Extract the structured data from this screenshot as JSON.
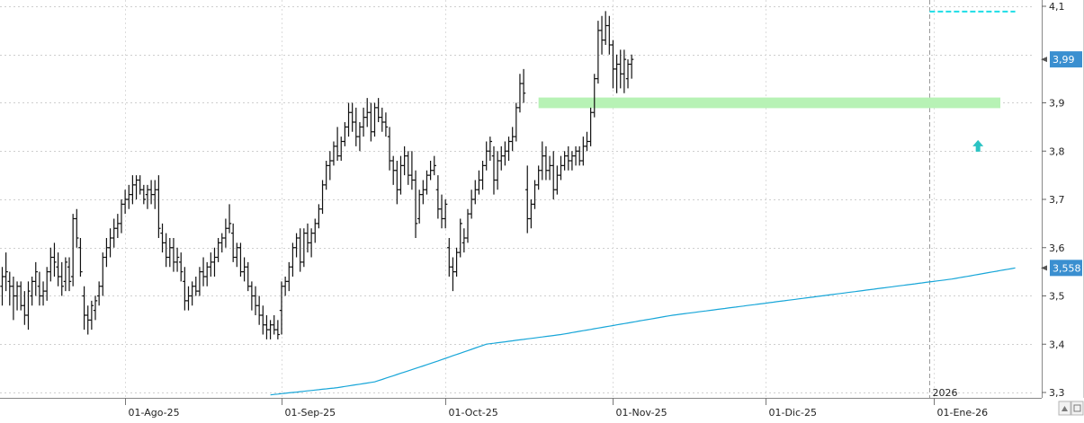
{
  "chart_data": {
    "type": "bar",
    "subtype": "ohlc",
    "title": "",
    "xlabel": "",
    "ylabel": "",
    "ylim": [
      3.3,
      4.1
    ],
    "y_ticks": [
      {
        "value": 3.3,
        "label": "3,3"
      },
      {
        "value": 3.4,
        "label": "3,4"
      },
      {
        "value": 3.5,
        "label": "3,5"
      },
      {
        "value": 3.6,
        "label": "3,6"
      },
      {
        "value": 3.7,
        "label": "3,7"
      },
      {
        "value": 3.8,
        "label": "3,8"
      },
      {
        "value": 3.9,
        "label": "3,9"
      },
      {
        "value": 4.1,
        "label": "4,1"
      }
    ],
    "x_ticks": [
      {
        "index": 33,
        "label": "01-Ago-25"
      },
      {
        "index": 75,
        "label": "01-Sep-25"
      },
      {
        "index": 119,
        "label": "01-Oct-25"
      },
      {
        "index": 164,
        "label": "01-Nov-25"
      },
      {
        "index": 205,
        "label": "01-Dic-25"
      },
      {
        "index": 250,
        "label": "01-Ene-26"
      }
    ],
    "year_marker": {
      "index": 249,
      "label": "2026"
    },
    "grid": true,
    "price_badge": {
      "value": 3.99,
      "label": "3,99",
      "color": "#3a8fd0"
    },
    "ma_badge": {
      "value": 3.558,
      "label": "3,558",
      "color": "#3a8fd0"
    },
    "bar_color": "#111111",
    "ma_color": "#18a6d8",
    "resistance_zone": {
      "from_index": 144,
      "to_index": 268,
      "low": 3.889,
      "high": 3.911,
      "color": "#b7f2b5"
    },
    "high_line": {
      "from_index": 249,
      "to_index": 272,
      "value": 4.089,
      "color": "#1ddde6"
    },
    "arrow": {
      "index": 262,
      "value": 3.81,
      "direction": "up",
      "color": "#2bc3c3"
    },
    "ohlc": [
      [
        3.52,
        3.56,
        3.48,
        3.54
      ],
      [
        3.54,
        3.59,
        3.51,
        3.55
      ],
      [
        3.53,
        3.55,
        3.48,
        3.52
      ],
      [
        3.52,
        3.54,
        3.45,
        3.5
      ],
      [
        3.5,
        3.53,
        3.47,
        3.52
      ],
      [
        3.52,
        3.53,
        3.47,
        3.48
      ],
      [
        3.48,
        3.51,
        3.44,
        3.46
      ],
      [
        3.46,
        3.53,
        3.43,
        3.51
      ],
      [
        3.5,
        3.54,
        3.48,
        3.53
      ],
      [
        3.53,
        3.57,
        3.5,
        3.55
      ],
      [
        3.52,
        3.55,
        3.48,
        3.5
      ],
      [
        3.5,
        3.53,
        3.48,
        3.51
      ],
      [
        3.51,
        3.56,
        3.49,
        3.55
      ],
      [
        3.55,
        3.6,
        3.53,
        3.58
      ],
      [
        3.58,
        3.61,
        3.54,
        3.57
      ],
      [
        3.56,
        3.59,
        3.52,
        3.54
      ],
      [
        3.54,
        3.57,
        3.5,
        3.52
      ],
      [
        3.53,
        3.58,
        3.51,
        3.57
      ],
      [
        3.56,
        3.58,
        3.51,
        3.53
      ],
      [
        3.54,
        3.67,
        3.52,
        3.66
      ],
      [
        3.66,
        3.68,
        3.6,
        3.62
      ],
      [
        3.6,
        3.62,
        3.54,
        3.55
      ],
      [
        3.5,
        3.52,
        3.43,
        3.46
      ],
      [
        3.46,
        3.48,
        3.42,
        3.45
      ],
      [
        3.45,
        3.49,
        3.43,
        3.48
      ],
      [
        3.47,
        3.5,
        3.45,
        3.49
      ],
      [
        3.5,
        3.53,
        3.48,
        3.52
      ],
      [
        3.52,
        3.59,
        3.5,
        3.58
      ],
      [
        3.58,
        3.62,
        3.56,
        3.6
      ],
      [
        3.6,
        3.64,
        3.58,
        3.62
      ],
      [
        3.62,
        3.66,
        3.6,
        3.64
      ],
      [
        3.64,
        3.67,
        3.62,
        3.65
      ],
      [
        3.65,
        3.7,
        3.63,
        3.69
      ],
      [
        3.69,
        3.72,
        3.67,
        3.7
      ],
      [
        3.7,
        3.73,
        3.68,
        3.71
      ],
      [
        3.71,
        3.75,
        3.69,
        3.73
      ],
      [
        3.73,
        3.75,
        3.7,
        3.74
      ],
      [
        3.74,
        3.75,
        3.71,
        3.72
      ],
      [
        3.72,
        3.73,
        3.69,
        3.7
      ],
      [
        3.71,
        3.73,
        3.68,
        3.72
      ],
      [
        3.72,
        3.74,
        3.69,
        3.71
      ],
      [
        3.71,
        3.74,
        3.68,
        3.72
      ],
      [
        3.72,
        3.75,
        3.62,
        3.64
      ],
      [
        3.63,
        3.65,
        3.59,
        3.61
      ],
      [
        3.61,
        3.63,
        3.56,
        3.58
      ],
      [
        3.58,
        3.62,
        3.56,
        3.6
      ],
      [
        3.6,
        3.62,
        3.55,
        3.57
      ],
      [
        3.57,
        3.6,
        3.55,
        3.58
      ],
      [
        3.57,
        3.59,
        3.53,
        3.55
      ],
      [
        3.53,
        3.56,
        3.47,
        3.49
      ],
      [
        3.49,
        3.52,
        3.47,
        3.5
      ],
      [
        3.5,
        3.53,
        3.48,
        3.52
      ],
      [
        3.52,
        3.54,
        3.5,
        3.51
      ],
      [
        3.51,
        3.56,
        3.5,
        3.55
      ],
      [
        3.55,
        3.58,
        3.52,
        3.54
      ],
      [
        3.54,
        3.57,
        3.52,
        3.56
      ],
      [
        3.56,
        3.59,
        3.54,
        3.57
      ],
      [
        3.57,
        3.6,
        3.54,
        3.58
      ],
      [
        3.58,
        3.62,
        3.57,
        3.61
      ],
      [
        3.61,
        3.63,
        3.59,
        3.62
      ],
      [
        3.62,
        3.66,
        3.6,
        3.64
      ],
      [
        3.64,
        3.69,
        3.63,
        3.65
      ],
      [
        3.63,
        3.65,
        3.57,
        3.58
      ],
      [
        3.58,
        3.61,
        3.56,
        3.6
      ],
      [
        3.6,
        3.61,
        3.54,
        3.55
      ],
      [
        3.55,
        3.58,
        3.53,
        3.56
      ],
      [
        3.56,
        3.57,
        3.51,
        3.52
      ],
      [
        3.52,
        3.53,
        3.47,
        3.5
      ],
      [
        3.5,
        3.52,
        3.46,
        3.48
      ],
      [
        3.48,
        3.5,
        3.44,
        3.46
      ],
      [
        3.46,
        3.48,
        3.42,
        3.44
      ],
      [
        3.44,
        3.46,
        3.41,
        3.43
      ],
      [
        3.43,
        3.45,
        3.41,
        3.44
      ],
      [
        3.44,
        3.46,
        3.42,
        3.43
      ],
      [
        3.43,
        3.45,
        3.41,
        3.42
      ],
      [
        3.47,
        3.53,
        3.42,
        3.52
      ],
      [
        3.52,
        3.54,
        3.5,
        3.53
      ],
      [
        3.53,
        3.57,
        3.51,
        3.56
      ],
      [
        3.56,
        3.61,
        3.54,
        3.6
      ],
      [
        3.6,
        3.63,
        3.58,
        3.62
      ],
      [
        3.62,
        3.64,
        3.55,
        3.57
      ],
      [
        3.57,
        3.64,
        3.56,
        3.63
      ],
      [
        3.63,
        3.65,
        3.59,
        3.61
      ],
      [
        3.61,
        3.64,
        3.58,
        3.63
      ],
      [
        3.63,
        3.66,
        3.61,
        3.65
      ],
      [
        3.65,
        3.69,
        3.64,
        3.68
      ],
      [
        3.68,
        3.74,
        3.67,
        3.73
      ],
      [
        3.73,
        3.78,
        3.72,
        3.77
      ],
      [
        3.77,
        3.8,
        3.74,
        3.78
      ],
      [
        3.78,
        3.82,
        3.77,
        3.81
      ],
      [
        3.81,
        3.85,
        3.78,
        3.79
      ],
      [
        3.79,
        3.83,
        3.78,
        3.82
      ],
      [
        3.82,
        3.86,
        3.81,
        3.85
      ],
      [
        3.85,
        3.9,
        3.83,
        3.88
      ],
      [
        3.88,
        3.9,
        3.84,
        3.86
      ],
      [
        3.86,
        3.89,
        3.81,
        3.83
      ],
      [
        3.83,
        3.86,
        3.8,
        3.85
      ],
      [
        3.85,
        3.89,
        3.83,
        3.87
      ],
      [
        3.87,
        3.91,
        3.85,
        3.88
      ],
      [
        3.88,
        3.9,
        3.82,
        3.84
      ],
      [
        3.84,
        3.9,
        3.83,
        3.89
      ],
      [
        3.89,
        3.91,
        3.86,
        3.87
      ],
      [
        3.87,
        3.89,
        3.84,
        3.86
      ],
      [
        3.86,
        3.88,
        3.83,
        3.85
      ],
      [
        3.83,
        3.85,
        3.76,
        3.78
      ],
      [
        3.78,
        3.79,
        3.73,
        3.76
      ],
      [
        3.76,
        3.78,
        3.69,
        3.72
      ],
      [
        3.72,
        3.79,
        3.71,
        3.77
      ],
      [
        3.77,
        3.81,
        3.75,
        3.79
      ],
      [
        3.79,
        3.8,
        3.73,
        3.75
      ],
      [
        3.75,
        3.8,
        3.72,
        3.74
      ],
      [
        3.74,
        3.76,
        3.62,
        3.65
      ],
      [
        3.66,
        3.72,
        3.65,
        3.71
      ],
      [
        3.71,
        3.74,
        3.69,
        3.72
      ],
      [
        3.72,
        3.76,
        3.71,
        3.75
      ],
      [
        3.75,
        3.78,
        3.74,
        3.76
      ],
      [
        3.76,
        3.79,
        3.75,
        3.77
      ],
      [
        3.72,
        3.75,
        3.66,
        3.68
      ],
      [
        3.68,
        3.71,
        3.64,
        3.66
      ],
      [
        3.66,
        3.7,
        3.64,
        3.69
      ],
      [
        3.6,
        3.62,
        3.54,
        3.56
      ],
      [
        3.56,
        3.58,
        3.51,
        3.55
      ],
      [
        3.55,
        3.6,
        3.54,
        3.59
      ],
      [
        3.59,
        3.66,
        3.58,
        3.65
      ],
      [
        3.61,
        3.64,
        3.59,
        3.62
      ],
      [
        3.62,
        3.68,
        3.61,
        3.67
      ],
      [
        3.67,
        3.72,
        3.66,
        3.7
      ],
      [
        3.7,
        3.74,
        3.69,
        3.72
      ],
      [
        3.72,
        3.76,
        3.71,
        3.74
      ],
      [
        3.74,
        3.78,
        3.72,
        3.77
      ],
      [
        3.77,
        3.82,
        3.76,
        3.8
      ],
      [
        3.8,
        3.83,
        3.78,
        3.82
      ],
      [
        3.79,
        3.81,
        3.71,
        3.74
      ],
      [
        3.74,
        3.8,
        3.72,
        3.78
      ],
      [
        3.78,
        3.81,
        3.76,
        3.79
      ],
      [
        3.79,
        3.82,
        3.77,
        3.8
      ],
      [
        3.8,
        3.83,
        3.78,
        3.82
      ],
      [
        3.82,
        3.85,
        3.8,
        3.83
      ],
      [
        3.83,
        3.9,
        3.82,
        3.89
      ],
      [
        3.89,
        3.96,
        3.88,
        3.94
      ],
      [
        3.94,
        3.97,
        3.9,
        3.92
      ],
      [
        3.72,
        3.77,
        3.63,
        3.66
      ],
      [
        3.66,
        3.7,
        3.64,
        3.69
      ],
      [
        3.69,
        3.74,
        3.68,
        3.73
      ],
      [
        3.73,
        3.77,
        3.72,
        3.76
      ],
      [
        3.76,
        3.82,
        3.74,
        3.79
      ],
      [
        3.79,
        3.81,
        3.74,
        3.76
      ],
      [
        3.76,
        3.79,
        3.74,
        3.77
      ],
      [
        3.77,
        3.8,
        3.7,
        3.72
      ],
      [
        3.72,
        3.77,
        3.71,
        3.75
      ],
      [
        3.75,
        3.79,
        3.74,
        3.77
      ],
      [
        3.77,
        3.8,
        3.76,
        3.79
      ],
      [
        3.79,
        3.81,
        3.76,
        3.78
      ],
      [
        3.78,
        3.8,
        3.76,
        3.79
      ],
      [
        3.79,
        3.81,
        3.77,
        3.8
      ],
      [
        3.8,
        3.81,
        3.77,
        3.78
      ],
      [
        3.78,
        3.83,
        3.77,
        3.81
      ],
      [
        3.81,
        3.84,
        3.8,
        3.82
      ],
      [
        3.82,
        3.89,
        3.81,
        3.88
      ],
      [
        3.88,
        3.96,
        3.87,
        3.95
      ],
      [
        3.95,
        4.07,
        3.94,
        4.05
      ],
      [
        4.05,
        4.08,
        4.0,
        4.03
      ],
      [
        4.03,
        4.09,
        4.02,
        4.06
      ],
      [
        4.06,
        4.08,
        4.0,
        4.02
      ],
      [
        4.02,
        4.03,
        3.93,
        3.97
      ],
      [
        3.97,
        4.0,
        3.92,
        3.98
      ],
      [
        3.98,
        4.01,
        3.93,
        3.96
      ],
      [
        3.96,
        4.01,
        3.92,
        3.99
      ],
      [
        3.95,
        3.99,
        3.93,
        3.98
      ],
      [
        3.98,
        4.0,
        3.95,
        3.99
      ]
    ],
    "ma_series": {
      "start_index": 72,
      "end_index": 272,
      "start_value": 3.295,
      "end_value": 3.558,
      "knots": [
        [
          72,
          3.295
        ],
        [
          90,
          3.31
        ],
        [
          100,
          3.322
        ],
        [
          115,
          3.36
        ],
        [
          130,
          3.4
        ],
        [
          150,
          3.42
        ],
        [
          180,
          3.46
        ],
        [
          200,
          3.48
        ],
        [
          230,
          3.51
        ],
        [
          255,
          3.535
        ],
        [
          272,
          3.558
        ]
      ]
    }
  }
}
